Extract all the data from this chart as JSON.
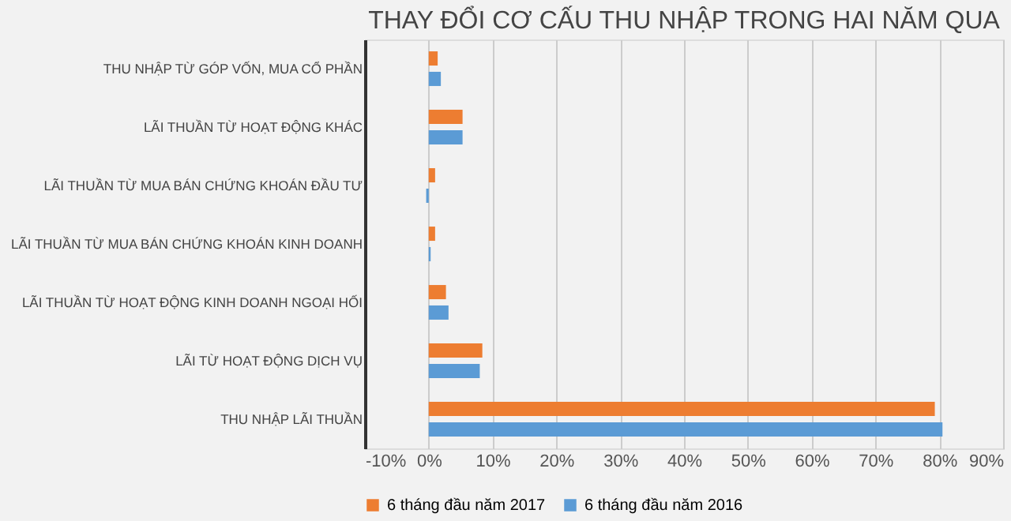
{
  "chart_data": {
    "type": "bar",
    "orientation": "horizontal",
    "title": "THAY ĐỔI CƠ CẤU THU NHẬP TRONG HAI NĂM QUA",
    "categories": [
      "THU NHẬP TỪ GÓP VỐN, MUA CỔ PHẦN",
      "LÃI THUẦN TỪ HOẠT ĐỘNG KHÁC",
      "LÃI THUẦN TỪ MUA BÁN CHỨNG KHOÁN ĐẦU TƯ",
      "LÃI THUẦN TỪ MUA BÁN CHỨNG KHOÁN KINH DOANH",
      "LÃI THUẦN TỪ HOẠT ĐỘNG KINH DOANH NGOẠI HỐI",
      "LÃI TỪ HOẠT ĐỘNG DỊCH VỤ",
      "THU NHẬP LÃI THUẦN"
    ],
    "series": [
      {
        "name": "6 tháng đầu năm 2017",
        "color": "#ed7d31",
        "values": [
          1.4,
          5.3,
          1.0,
          1.0,
          2.7,
          8.4,
          79.3
        ]
      },
      {
        "name": "6 tháng đầu năm 2016",
        "color": "#5b9bd5",
        "values": [
          1.9,
          5.3,
          -0.4,
          0.3,
          3.1,
          8.0,
          80.5
        ]
      }
    ],
    "xlim": [
      -10,
      90
    ],
    "xticks": [
      {
        "value": -10,
        "label": "-10%"
      },
      {
        "value": 0,
        "label": "0%"
      },
      {
        "value": 10,
        "label": "10%"
      },
      {
        "value": 20,
        "label": "20%"
      },
      {
        "value": 30,
        "label": "30%"
      },
      {
        "value": 40,
        "label": "40%"
      },
      {
        "value": 50,
        "label": "50%"
      },
      {
        "value": 60,
        "label": "60%"
      },
      {
        "value": 70,
        "label": "70%"
      },
      {
        "value": 80,
        "label": "80%"
      },
      {
        "value": 90,
        "label": "90%"
      }
    ],
    "grid": "x",
    "legend": "bottom"
  }
}
